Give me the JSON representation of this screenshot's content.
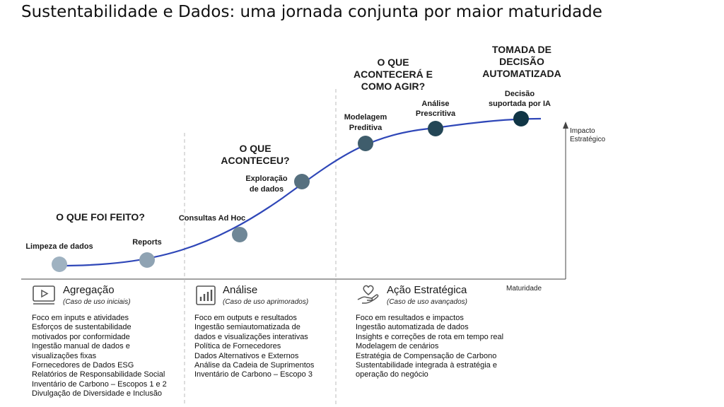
{
  "title": "Sustentabilidade e Dados: uma jornada conjunta por maior maturidade",
  "axes": {
    "y_label_line1": "Impacto",
    "y_label_line2": "Estratégico",
    "x_label": "Maturidade"
  },
  "questions": {
    "q1": [
      "O QUE FOI FEITO?"
    ],
    "q2": [
      "O QUE",
      "ACONTECEU?"
    ],
    "q3": [
      "O QUE",
      "ACONTECERÁ E",
      "COMO AGIR?"
    ],
    "q4": [
      "TOMADA DE",
      "DECISÃO",
      "AUTOMATIZADA"
    ]
  },
  "points": [
    {
      "label": [
        "Limpeza de dados"
      ],
      "color": "#9fb2c1"
    },
    {
      "label": [
        "Reports"
      ],
      "color": "#8fa3b3"
    },
    {
      "label": [
        "Consultas Ad Hoc"
      ],
      "color": "#6f8797"
    },
    {
      "label": [
        "Exploração",
        "de dados"
      ],
      "color": "#56707f"
    },
    {
      "label": [
        "Modelagem",
        "Preditiva"
      ],
      "color": "#3f5d6c"
    },
    {
      "label": [
        "Análise",
        "Prescritiva"
      ],
      "color": "#234656"
    },
    {
      "label": [
        "Decisão",
        "suportada por IA"
      ],
      "color": "#103545"
    }
  ],
  "curve_color": "#2f47b8",
  "columns": [
    {
      "icon": "play-screen-icon",
      "title": "Agregação",
      "subtitle": "(Caso de uso iniciais)",
      "items": [
        "Foco em inputs e atividades",
        "Esforços de sustentabilidade",
        "motivados por conformidade",
        "Ingestão manual de dados e",
        "visualizações fixas",
        "Fornecedores de Dados ESG",
        "Relatórios de Responsabilidade Social",
        "Inventário de Carbono – Escopos 1 e 2",
        "Divulgação de Diversidade e Inclusão"
      ]
    },
    {
      "icon": "bar-chart-icon",
      "title": "Análise",
      "subtitle": "(Caso de uso aprimorados)",
      "items": [
        "Foco em outputs e resultados",
        "Ingestão semiautomatizada de",
        "dados e visualizações interativas",
        "Política de Fornecedores",
        "Dados Alternativos e Externos",
        "Análise da Cadeia de Suprimentos",
        "Inventário de Carbono – Escopo 3"
      ]
    },
    {
      "icon": "hand-heart-icon",
      "title": "Ação Estratégica",
      "subtitle": "(Caso de uso avançados)",
      "items": [
        "Foco em resultados e impactos",
        "Ingestão automatizada de dados",
        "Insights e correções de rota em tempo real",
        "Modelagem de cenários",
        "Estratégia de Compensação de Carbono",
        "Sustentabilidade integrada à estratégia e",
        "operação do negócio"
      ]
    }
  ]
}
